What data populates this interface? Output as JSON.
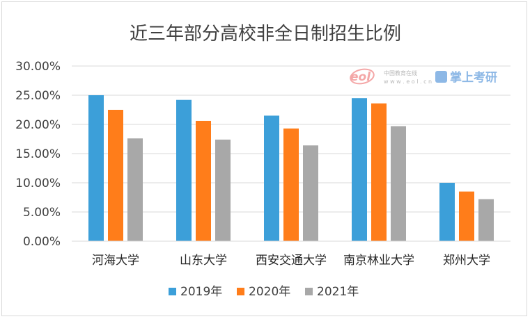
{
  "chart_data": {
    "type": "bar",
    "title": "近三年部分高校非全日制招生比例",
    "categories": [
      "河海大学",
      "山东大学",
      "西安交通大学",
      "南京林业大学",
      "郑州大学"
    ],
    "series": [
      {
        "name": "2019年",
        "color": "#3c9fd9",
        "values": [
          25.0,
          24.2,
          21.5,
          24.5,
          10.0
        ]
      },
      {
        "name": "2020年",
        "color": "#ff7d1a",
        "values": [
          22.5,
          20.6,
          19.3,
          23.6,
          8.5
        ]
      },
      {
        "name": "2021年",
        "color": "#a8a8a8",
        "values": [
          17.6,
          17.4,
          16.4,
          19.7,
          7.2
        ]
      }
    ],
    "ylim": [
      0,
      30
    ],
    "ytick_values": [
      0,
      5,
      10,
      15,
      20,
      25,
      30
    ],
    "ytick_labels": [
      "0.00%",
      "5.00%",
      "10.00%",
      "15.00%",
      "20.00%",
      "25.00%",
      "30.00%"
    ],
    "xlabel": "",
    "ylabel": "",
    "grid": true,
    "legend_position": "bottom"
  },
  "watermark": {
    "logo_text": "eol",
    "line1": "中国教育在线",
    "line2": "w w w . e o l . c n",
    "brand": "掌上考研"
  }
}
